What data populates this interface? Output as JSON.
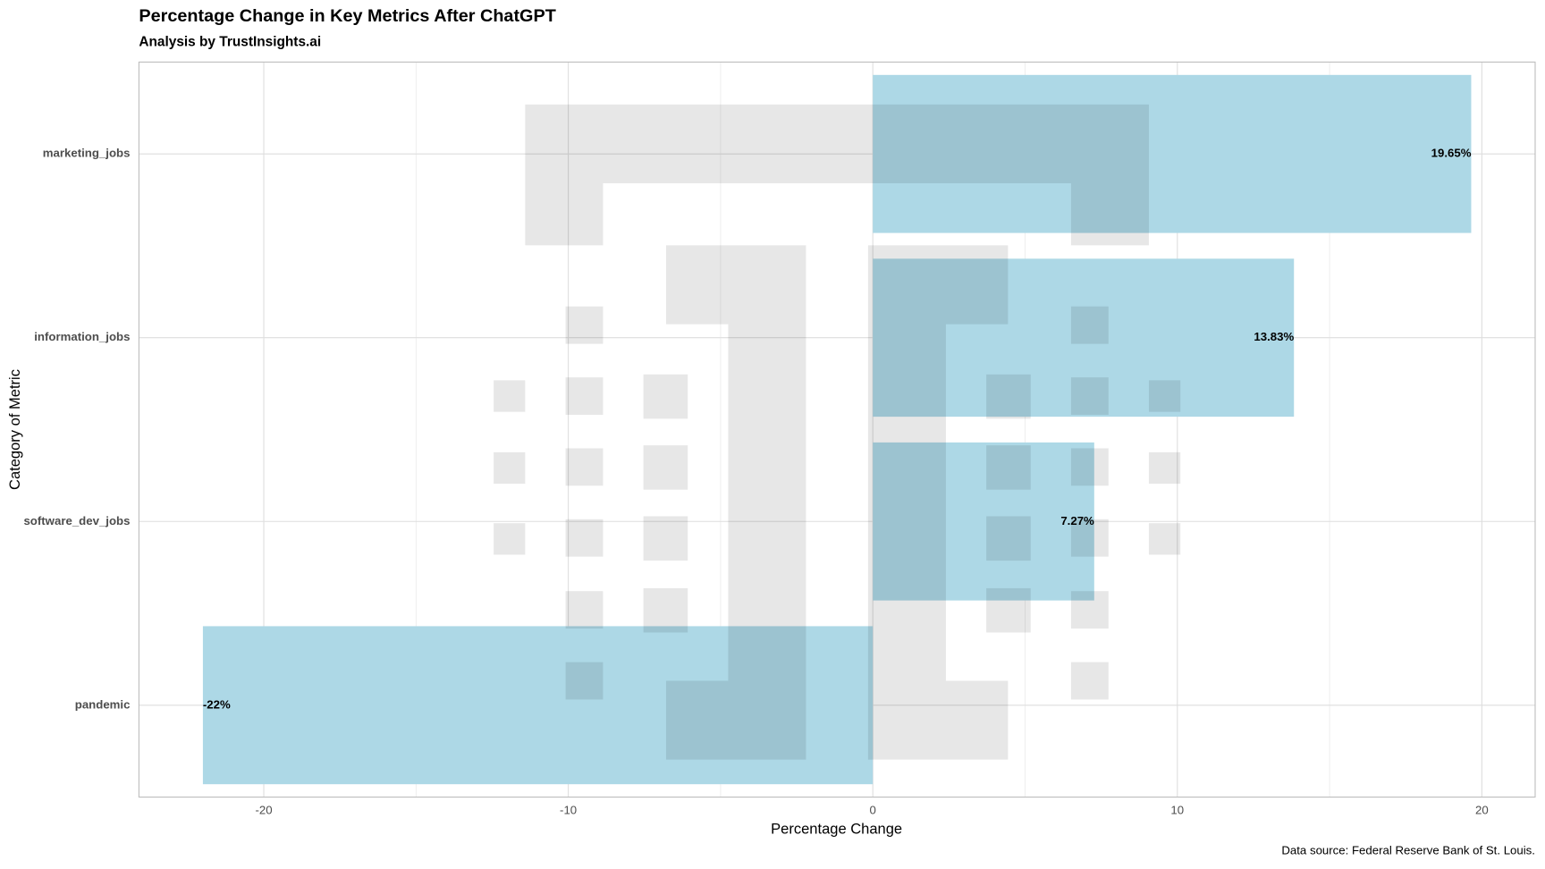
{
  "chart_data": {
    "type": "barh",
    "title": "Percentage Change in Key Metrics After ChatGPT",
    "subtitle": "Analysis by TrustInsights.ai",
    "x_label": "Percentage Change",
    "y_label": "Category of Metric",
    "caption": "Data source: Federal Reserve Bank of St. Louis.",
    "categories": [
      "marketing_jobs",
      "information_jobs",
      "software_dev_jobs",
      "pandemic"
    ],
    "values": [
      19.65,
      13.83,
      7.27,
      -22
    ],
    "value_labels": [
      "19.65%",
      "13.83%",
      "7.27%",
      "-22%"
    ],
    "color": "#add8e6",
    "xlim": [
      -24.1,
      21.75
    ],
    "xticks": [
      -20,
      -10,
      0,
      10,
      20
    ],
    "x_minor_gridlines": [
      -15,
      -5,
      5,
      15
    ],
    "grid": true
  }
}
